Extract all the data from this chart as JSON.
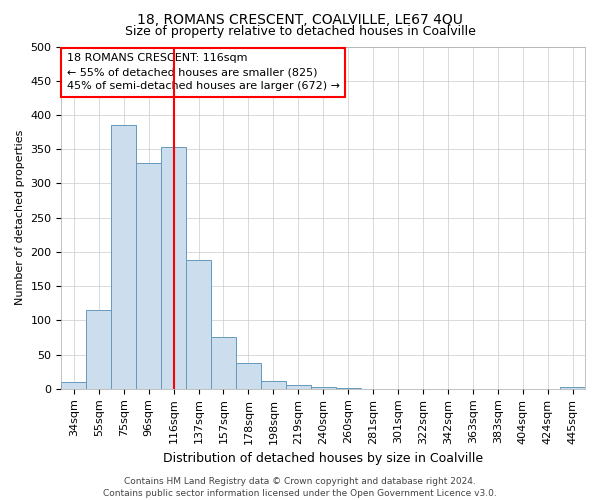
{
  "title": "18, ROMANS CRESCENT, COALVILLE, LE67 4QU",
  "subtitle": "Size of property relative to detached houses in Coalville",
  "xlabel": "Distribution of detached houses by size in Coalville",
  "ylabel": "Number of detached properties",
  "categories": [
    "34sqm",
    "55sqm",
    "75sqm",
    "96sqm",
    "116sqm",
    "137sqm",
    "157sqm",
    "178sqm",
    "198sqm",
    "219sqm",
    "240sqm",
    "260sqm",
    "281sqm",
    "301sqm",
    "322sqm",
    "342sqm",
    "363sqm",
    "383sqm",
    "404sqm",
    "424sqm",
    "445sqm"
  ],
  "values": [
    10,
    115,
    385,
    330,
    353,
    188,
    75,
    37,
    11,
    5,
    2,
    1,
    0,
    0,
    0,
    0,
    0,
    0,
    0,
    0,
    2
  ],
  "bar_color": "#ccdded",
  "bar_edge_color": "#6699bb",
  "red_line_index": 4,
  "annotation_line1": "18 ROMANS CRESCENT: 116sqm",
  "annotation_line2": "← 55% of detached houses are smaller (825)",
  "annotation_line3": "45% of semi-detached houses are larger (672) →",
  "annotation_box_color": "white",
  "annotation_box_edge_color": "red",
  "red_line_color": "red",
  "ylim": [
    0,
    500
  ],
  "yticks": [
    0,
    50,
    100,
    150,
    200,
    250,
    300,
    350,
    400,
    450,
    500
  ],
  "background_color": "white",
  "grid_color": "#cccccc",
  "footer_text": "Contains HM Land Registry data © Crown copyright and database right 2024.\nContains public sector information licensed under the Open Government Licence v3.0.",
  "title_fontsize": 10,
  "subtitle_fontsize": 9,
  "xlabel_fontsize": 9,
  "ylabel_fontsize": 8,
  "tick_fontsize": 8,
  "annotation_fontsize": 8,
  "footer_fontsize": 6.5
}
